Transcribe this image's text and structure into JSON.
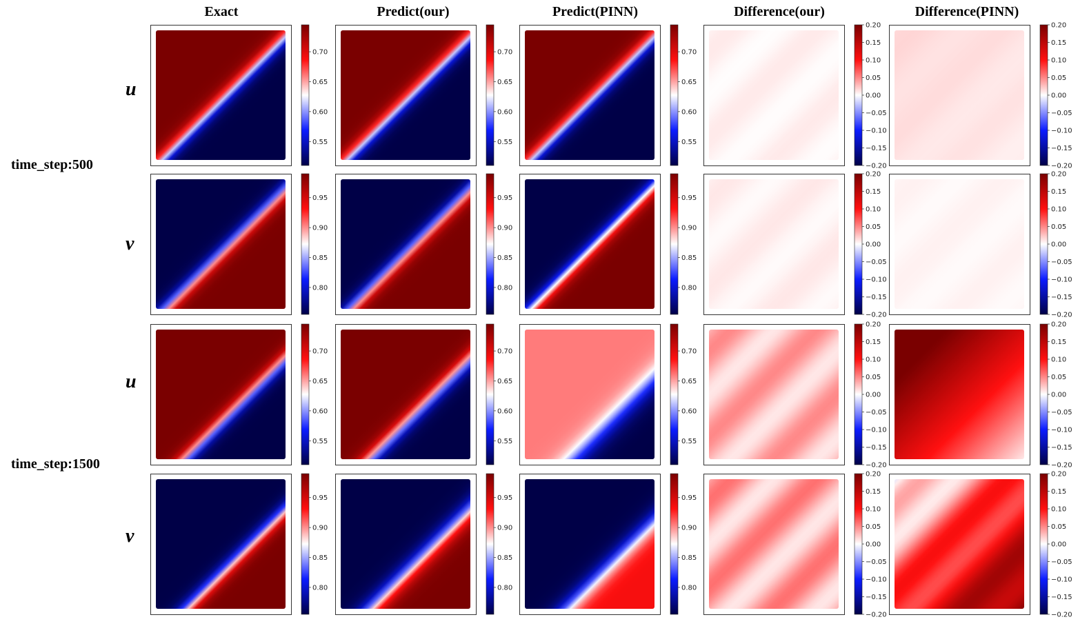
{
  "column_titles": [
    "Exact",
    "Predict(our)",
    "Predict(PINN)",
    "Difference(our)",
    "Difference(PINN)"
  ],
  "row_groups": [
    "time_step:500",
    "time_step:1500"
  ],
  "variables": [
    "u",
    "v",
    "u",
    "v"
  ],
  "colors": {
    "dark_blue": "#000047",
    "blue": "#0b1cff",
    "white": "#ffffff",
    "red": "#ff1010",
    "dark_red": "#7a0000"
  },
  "chart_data": {
    "type": "heatmap",
    "description_free": true,
    "colorbars": {
      "u": {
        "ticks": [
          "0.55",
          "0.60",
          "0.65",
          "0.70"
        ],
        "range": [
          0.51,
          0.745
        ]
      },
      "v": {
        "ticks": [
          "0.80",
          "0.85",
          "0.90",
          "0.95"
        ],
        "range": [
          0.755,
          0.99
        ]
      },
      "diff": {
        "ticks": [
          "0.20",
          "0.15",
          "0.10",
          "0.05",
          "0.00",
          "−0.05",
          "−0.10",
          "−0.15",
          "−0.20"
        ],
        "range": [
          -0.2,
          0.2
        ]
      }
    },
    "panels": [
      {
        "row": 0,
        "col": 0,
        "kind": "field",
        "var": "u",
        "lo": 0.51,
        "hi": 0.745,
        "c": 0.04,
        "w": 0.09,
        "invert": false
      },
      {
        "row": 0,
        "col": 1,
        "kind": "field",
        "var": "u",
        "lo": 0.51,
        "hi": 0.745,
        "c": 0.04,
        "w": 0.09,
        "invert": false
      },
      {
        "row": 0,
        "col": 2,
        "kind": "field",
        "var": "u",
        "lo": 0.51,
        "hi": 0.745,
        "c": 0.04,
        "w": 0.09,
        "invert": false
      },
      {
        "row": 0,
        "col": 3,
        "kind": "diff",
        "var": "u",
        "mean": 0.005,
        "amp": 0.004,
        "grad": 0.0
      },
      {
        "row": 0,
        "col": 4,
        "kind": "diff",
        "var": "u",
        "mean": 0.012,
        "amp": 0.002,
        "grad": 0.004
      },
      {
        "row": 1,
        "col": 0,
        "kind": "field",
        "var": "v",
        "lo": 0.755,
        "hi": 0.99,
        "c": 0.08,
        "w": 0.09,
        "invert": true
      },
      {
        "row": 1,
        "col": 1,
        "kind": "field",
        "var": "v",
        "lo": 0.755,
        "hi": 0.99,
        "c": 0.08,
        "w": 0.09,
        "invert": true
      },
      {
        "row": 1,
        "col": 2,
        "kind": "field",
        "var": "v",
        "lo": 0.755,
        "hi": 0.99,
        "c": 0.05,
        "w": 0.09,
        "invert": true
      },
      {
        "row": 1,
        "col": 3,
        "kind": "diff",
        "var": "v",
        "mean": 0.006,
        "amp": 0.004,
        "grad": 0.0
      },
      {
        "row": 1,
        "col": 4,
        "kind": "diff",
        "var": "v",
        "mean": 0.004,
        "amp": 0.002,
        "grad": 0.0
      },
      {
        "row": 2,
        "col": 0,
        "kind": "field",
        "var": "u",
        "lo": 0.51,
        "hi": 0.745,
        "c": 0.22,
        "w": 0.09,
        "invert": false
      },
      {
        "row": 2,
        "col": 1,
        "kind": "field",
        "var": "u",
        "lo": 0.51,
        "hi": 0.745,
        "c": 0.22,
        "w": 0.1,
        "invert": false
      },
      {
        "row": 2,
        "col": 2,
        "kind": "field",
        "var": "u",
        "lo": 0.51,
        "hi": 0.66,
        "c": 0.38,
        "w": 0.14,
        "invert": false
      },
      {
        "row": 2,
        "col": 3,
        "kind": "diff",
        "var": "u",
        "mean": 0.03,
        "amp": 0.02,
        "grad": 0.0
      },
      {
        "row": 2,
        "col": 4,
        "kind": "diff",
        "var": "u",
        "mean": 0.13,
        "amp": 0.0,
        "grad": 0.12
      },
      {
        "row": 3,
        "col": 0,
        "kind": "field",
        "var": "v",
        "lo": 0.755,
        "hi": 0.99,
        "c": 0.24,
        "w": 0.09,
        "invert": true
      },
      {
        "row": 3,
        "col": 1,
        "kind": "field",
        "var": "v",
        "lo": 0.755,
        "hi": 0.99,
        "c": 0.24,
        "w": 0.12,
        "invert": true
      },
      {
        "row": 3,
        "col": 2,
        "kind": "field",
        "var": "v",
        "lo": 0.755,
        "hi": 0.935,
        "c": 0.32,
        "w": 0.12,
        "invert": true
      },
      {
        "row": 3,
        "col": 3,
        "kind": "diff",
        "var": "v",
        "mean": 0.035,
        "amp": 0.025,
        "grad": 0.0
      },
      {
        "row": 3,
        "col": 4,
        "kind": "diff",
        "var": "v",
        "mean": 0.09,
        "amp": 0.03,
        "grad": -0.1
      }
    ]
  }
}
